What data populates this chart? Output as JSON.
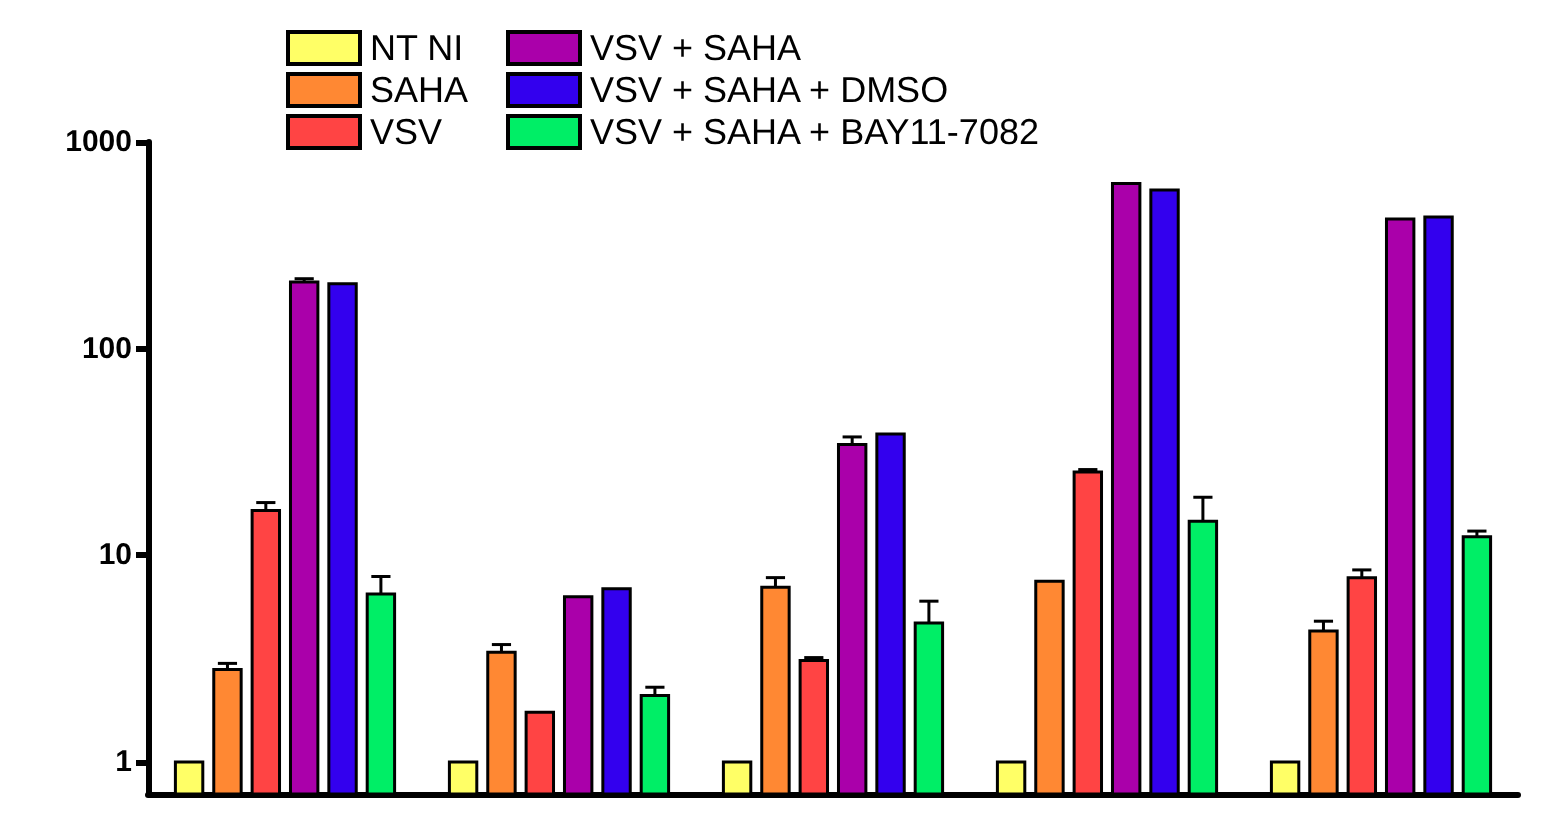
{
  "chart_data": {
    "type": "bar",
    "categories": [
      null,
      null,
      null,
      null,
      null
    ],
    "log": "y",
    "ylim": [
      0.7,
      1000
    ],
    "yticks": [
      1,
      10,
      100,
      1000
    ],
    "grid": false,
    "legend": "top left",
    "series": [
      {
        "name": "NT NI",
        "color": "#ffff66",
        "values": [
          1,
          1,
          1,
          1,
          1
        ]
      },
      {
        "name": "SAHA",
        "color": "#ff8833",
        "values": [
          2.8,
          3.4,
          7.0,
          7.5,
          4.3
        ],
        "errors": [
          [
            2.8,
            3.0
          ],
          [
            3.4,
            3.7
          ],
          [
            7.0,
            7.8
          ],
          null,
          [
            4.3,
            4.8
          ]
        ]
      },
      {
        "name": "VSV",
        "color": "#ff4444",
        "values": [
          16.5,
          1.74,
          3.1,
          25.3,
          7.8
        ],
        "errors": [
          [
            16.5,
            18
          ],
          null,
          [
            3.1,
            3.2
          ],
          [
            25.3,
            26
          ],
          [
            7.8,
            8.5
          ]
        ]
      },
      {
        "name": "VSV + SAHA",
        "color": "#aa00aa",
        "values": [
          210,
          6.3,
          34.4,
          630,
          424
        ],
        "errors": [
          [
            210,
            218
          ],
          null,
          [
            34.4,
            37.4
          ],
          null,
          null
        ]
      },
      {
        "name": "VSV + SAHA + DMSO",
        "color": "#3300ee",
        "values": [
          206,
          6.9,
          38.6,
          586,
          433
        ]
      },
      {
        "name": "VSV + SAHA + BAY11-7082",
        "color": "#00ee66",
        "values": [
          6.5,
          2.1,
          4.7,
          14.6,
          12.3
        ],
        "errors": [
          [
            6.5,
            7.9
          ],
          [
            2.1,
            2.3
          ],
          [
            4.7,
            6.0
          ],
          [
            14.6,
            19.1
          ],
          [
            12.3,
            13.1
          ]
        ]
      }
    ]
  }
}
